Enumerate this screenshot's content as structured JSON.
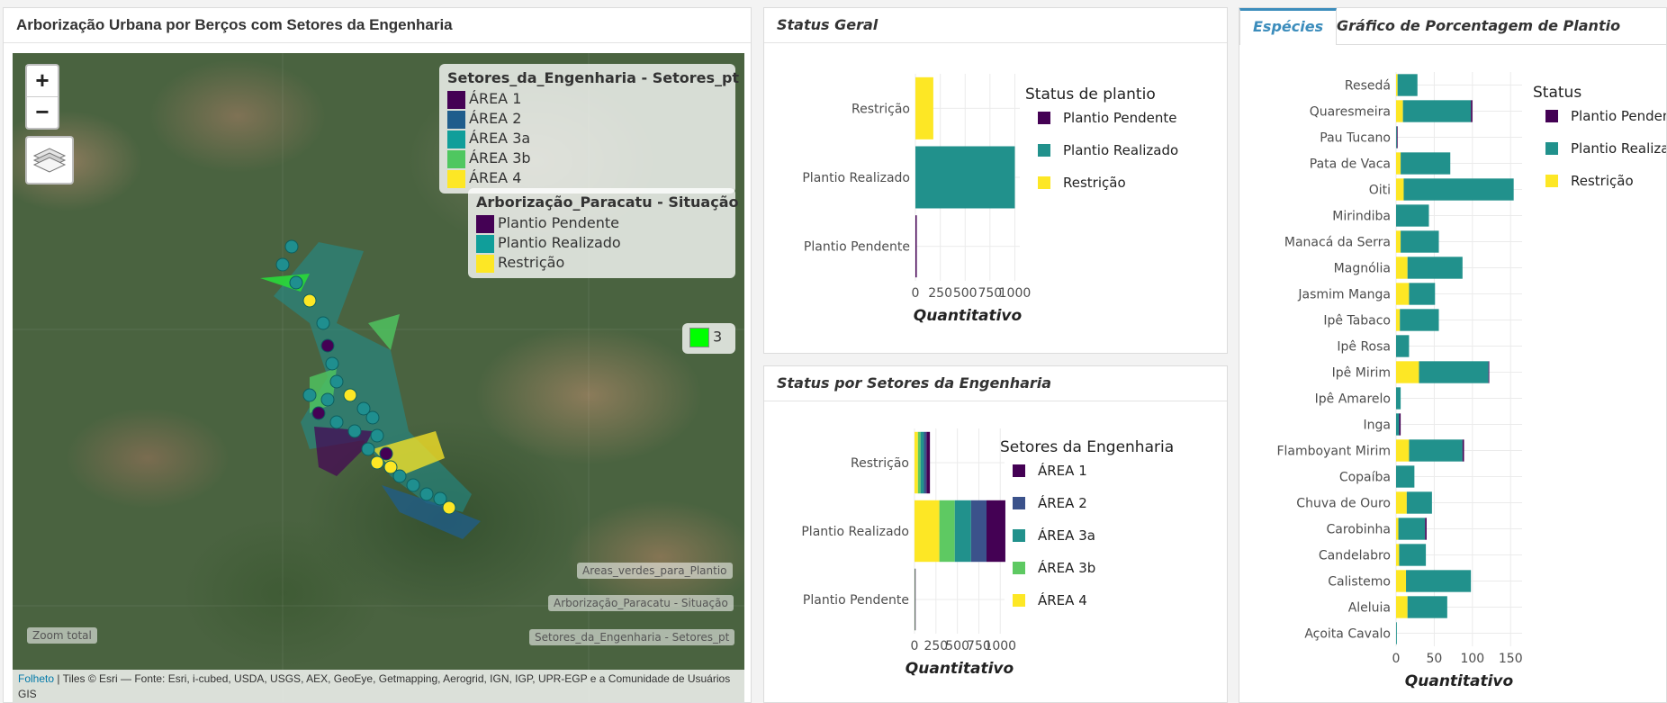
{
  "map_panel": {
    "title": "Arborização Urbana por Berços com Setores da Engenharia",
    "zoom_in": "+",
    "zoom_out": "−",
    "legend_setores": {
      "title": "Setores_da_Engenharia - Setores_pt",
      "items": [
        {
          "label": "ÁREA 1",
          "color": "#440154"
        },
        {
          "label": "ÁREA 2",
          "color": "#1f5d8c"
        },
        {
          "label": "ÁREA 3a",
          "color": "#109e9a"
        },
        {
          "label": "ÁREA 3b",
          "color": "#4fc760"
        },
        {
          "label": "ÁREA 4",
          "color": "#fde725"
        }
      ]
    },
    "legend_situacao": {
      "title": "Arborização_Paracatu - Situação",
      "items": [
        {
          "label": "Plantio Pendente",
          "color": "#440154"
        },
        {
          "label": "Plantio Realizado",
          "color": "#109e9a"
        },
        {
          "label": "Restrição",
          "color": "#fde725"
        }
      ]
    },
    "green_legend_label": "3",
    "layer_tags": [
      "Areas_verdes_para_Plantio",
      "Arborização_Paracatu - Situação",
      "Setores_da_Engenharia - Setores_pt"
    ],
    "zoom_total": "Zoom total",
    "attribution_link": "Folheto",
    "attribution_text": " | Tiles © Esri — Fonte: Esri, i-cubed, USDA, USGS, AEX, GeoEye, Getmapping, Aerogrid, IGN, IGP, UPR-EGP e a Comunidade de Usuários GIS"
  },
  "status_geral": {
    "title": "Status Geral",
    "chart_data": {
      "type": "bar",
      "orientation": "horizontal",
      "categories": [
        "Restrição",
        "Plantio Realizado",
        "Plantio Pendente"
      ],
      "values": [
        180,
        1000,
        10
      ],
      "colors": [
        "#fde725",
        "#21918c",
        "#440154"
      ],
      "xlabel": "Quantitativo",
      "xticks": [
        "0",
        "250",
        "500",
        "750",
        "1000"
      ],
      "xlim": [
        0,
        1050
      ],
      "legend_title": "Status de plantio",
      "legend": [
        {
          "label": "Plantio Pendente",
          "color": "#440154"
        },
        {
          "label": "Plantio Realizado",
          "color": "#21918c"
        },
        {
          "label": "Restrição",
          "color": "#fde725"
        }
      ]
    }
  },
  "status_setores": {
    "title": "Status por Setores da Engenharia",
    "chart_data": {
      "type": "bar",
      "orientation": "horizontal",
      "stacked": true,
      "categories": [
        "Restrição",
        "Plantio Realizado",
        "Plantio Pendente"
      ],
      "series": [
        {
          "name": "ÁREA 4",
          "color": "#fde725",
          "values": [
            40,
            290,
            2
          ]
        },
        {
          "name": "ÁREA 3b",
          "color": "#5ec962",
          "values": [
            30,
            180,
            2
          ]
        },
        {
          "name": "ÁREA 3a",
          "color": "#21918c",
          "values": [
            40,
            190,
            2
          ]
        },
        {
          "name": "ÁREA 2",
          "color": "#3b528b",
          "values": [
            30,
            180,
            1
          ]
        },
        {
          "name": "ÁREA 1",
          "color": "#440154",
          "values": [
            40,
            220,
            1
          ]
        }
      ],
      "xlabel": "Quantitativo",
      "xticks": [
        "0",
        "250",
        "500",
        "750",
        "1000"
      ],
      "xlim": [
        0,
        1050
      ],
      "legend_title": "Setores da Engenharia",
      "legend": [
        {
          "label": "ÁREA 1",
          "color": "#440154"
        },
        {
          "label": "ÁREA 2",
          "color": "#3b528b"
        },
        {
          "label": "ÁREA 3a",
          "color": "#21918c"
        },
        {
          "label": "ÁREA 3b",
          "color": "#5ec962"
        },
        {
          "label": "ÁREA 4",
          "color": "#fde725"
        }
      ]
    }
  },
  "species_panel": {
    "tabs": [
      {
        "label": "Espécies",
        "active": true
      },
      {
        "label": "Gráfico de Porcentagem de Plantio",
        "active": false
      }
    ],
    "chart_data": {
      "type": "bar",
      "orientation": "horizontal",
      "stacked": true,
      "categories": [
        "Resedá",
        "Quaresmeira",
        "Pau Tucano",
        "Pata de Vaca",
        "Oiti",
        "Mirindiba",
        "Manacá da Serra",
        "Magnólia",
        "Jasmim Manga",
        "Ipê Tabaco",
        "Ipê Rosa",
        "Ipê Mirim",
        "Ipê Amarelo",
        "Inga",
        "Flamboyant Mirim",
        "Copaíba",
        "Chuva de Ouro",
        "Carobinha",
        "Candelabro",
        "Calistemo",
        "Aleluia",
        "Açoita Cavalo"
      ],
      "series": [
        {
          "name": "Restrição",
          "color": "#fde725",
          "values": [
            2,
            9,
            0,
            6,
            10,
            0,
            6,
            15,
            17,
            5,
            0,
            30,
            0,
            0,
            17,
            0,
            14,
            3,
            4,
            13,
            15,
            0
          ]
        },
        {
          "name": "Plantio Realizado",
          "color": "#21918c",
          "values": [
            26,
            89,
            1,
            65,
            144,
            43,
            50,
            72,
            34,
            51,
            17,
            91,
            6,
            4,
            70,
            24,
            33,
            35,
            35,
            85,
            52,
            1
          ]
        },
        {
          "name": "Plantio Pendente",
          "color": "#440154",
          "values": [
            0,
            2,
            1,
            0,
            0,
            0,
            0,
            0,
            0,
            0,
            0,
            1,
            0,
            2,
            2,
            0,
            0,
            2,
            0,
            0,
            0,
            0
          ]
        }
      ],
      "xlabel": "Quantitativo",
      "xticks": [
        "0",
        "50",
        "100",
        "150"
      ],
      "xlim": [
        0,
        165
      ],
      "legend_title": "Status",
      "legend": [
        {
          "label": "Plantio Pendente",
          "color": "#440154"
        },
        {
          "label": "Plantio Realizado",
          "color": "#21918c"
        },
        {
          "label": "Restrição",
          "color": "#fde725"
        }
      ]
    }
  }
}
